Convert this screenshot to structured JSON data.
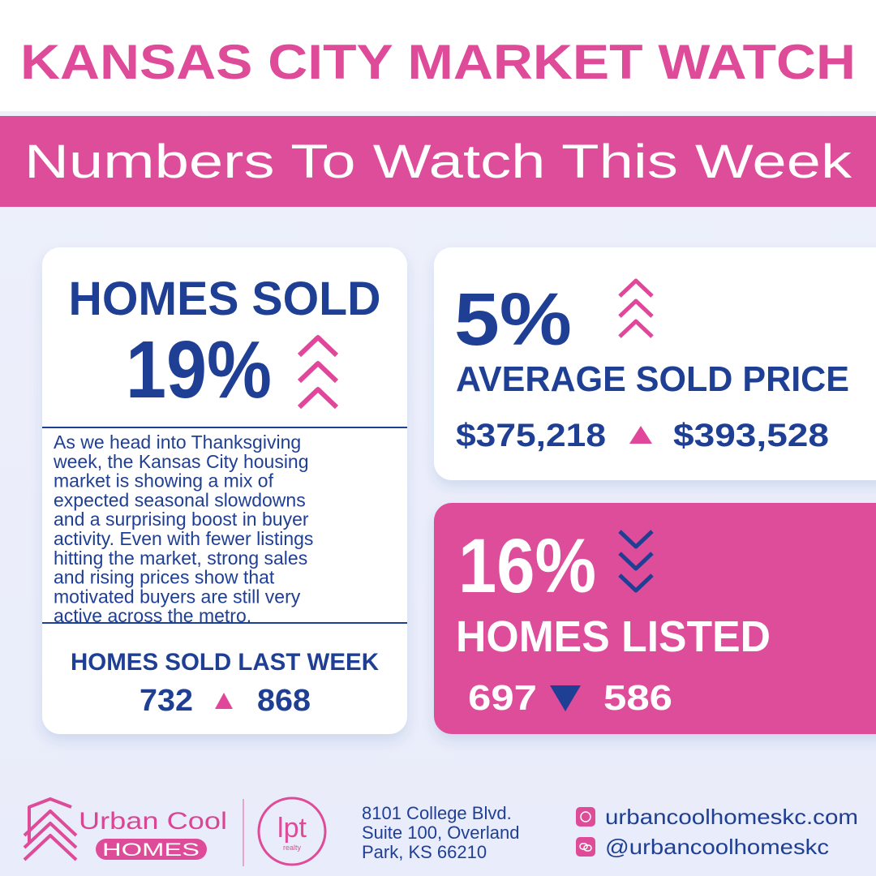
{
  "header": {
    "title": "KANSAS CITY MARKET WATCH",
    "subtitle": "Numbers To Watch This Week"
  },
  "homes_sold": {
    "title": "HOMES SOLD",
    "change": "19%",
    "description": [
      "As we head into Thanksgiving",
      "week, the Kansas City housing",
      "market is showing a mix of",
      "expected seasonal slowdowns",
      "and a surprising boost in buyer",
      "activity. Even with fewer listings",
      "hitting the market, strong sales",
      "and rising prices show that",
      "motivated buyers are still very",
      "active across the metro."
    ],
    "last_week_label": "HOMES SOLD LAST WEEK",
    "previous": "732",
    "current": "868"
  },
  "average_sold_price": {
    "change": "5%",
    "title": "AVERAGE SOLD PRICE",
    "previous": "$375,218",
    "current": "$393,528"
  },
  "homes_listed": {
    "change": "16%",
    "title": "HOMES LISTED",
    "previous": "697",
    "current": "586"
  },
  "footer": {
    "brand": "Urban Cool",
    "brand_sub": "HOMES",
    "partner": "lpt",
    "partner_sub": "realty",
    "address": [
      "8101 College Blvd.",
      "Suite 100, Overland",
      "Park, KS 66210"
    ],
    "website": "urbancoolhomeskc.com",
    "social": "@urbancoolhomeskc"
  }
}
